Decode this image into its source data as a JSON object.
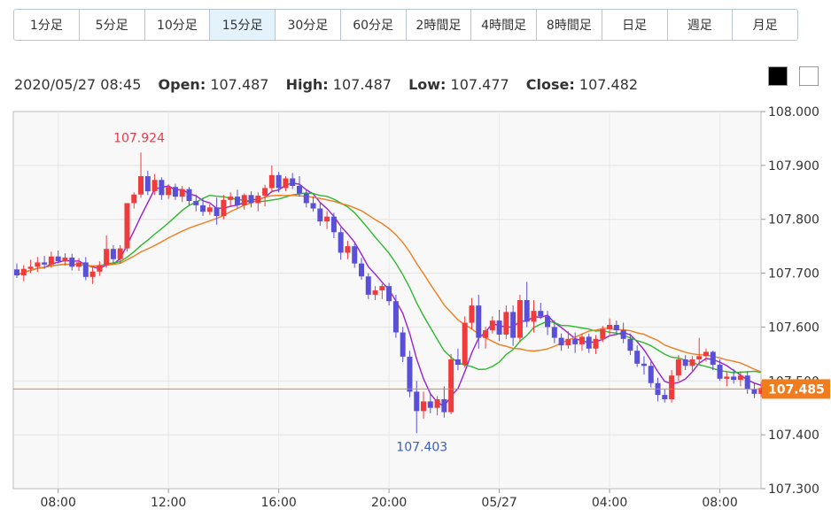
{
  "tabs": [
    {
      "label": "1分足",
      "active": false
    },
    {
      "label": "5分足",
      "active": false
    },
    {
      "label": "10分足",
      "active": false
    },
    {
      "label": "15分足",
      "active": true
    },
    {
      "label": "30分足",
      "active": false
    },
    {
      "label": "60分足",
      "active": false
    },
    {
      "label": "2時間足",
      "active": false
    },
    {
      "label": "4時間足",
      "active": false
    },
    {
      "label": "8時間足",
      "active": false
    },
    {
      "label": "日足",
      "active": false
    },
    {
      "label": "週足",
      "active": false
    },
    {
      "label": "月足",
      "active": false
    }
  ],
  "info": {
    "datetime": "2020/05/27 08:45",
    "open_label": "Open:",
    "open": "107.487",
    "high_label": "High:",
    "high": "107.487",
    "low_label": "Low:",
    "low": "107.477",
    "close_label": "Close:",
    "close": "107.482"
  },
  "theme_buttons": [
    {
      "color": "#000000"
    },
    {
      "color": "#ffffff"
    }
  ],
  "chart_data": {
    "type": "candlestick",
    "ylim": [
      107.3,
      108.0
    ],
    "y_ticks": [
      "108.000",
      "107.900",
      "107.800",
      "107.700",
      "107.600",
      "107.500",
      "107.400",
      "107.300"
    ],
    "x_ticks": [
      "08:00",
      "12:00",
      "16:00",
      "20:00",
      "05/27",
      "04:00",
      "08:00"
    ],
    "current_price": "107.485",
    "annotations": {
      "high": "107.924",
      "low": "107.403"
    },
    "colors": {
      "up": "#ef3b3b",
      "down": "#5a50d8",
      "ma_short": "#9b1fd0",
      "ma_mid": "#2eb82e",
      "ma_long": "#f07c1e",
      "current": "#f07c1e"
    },
    "ohlc": [
      [
        107.707,
        107.718,
        107.691,
        107.696
      ],
      [
        107.696,
        107.715,
        107.685,
        107.708
      ],
      [
        107.708,
        107.725,
        107.7,
        107.712
      ],
      [
        107.712,
        107.73,
        107.702,
        107.72
      ],
      [
        107.72,
        107.732,
        107.708,
        107.716
      ],
      [
        107.716,
        107.74,
        107.71,
        107.731
      ],
      [
        107.731,
        107.742,
        107.718,
        107.722
      ],
      [
        107.722,
        107.737,
        107.714,
        107.729
      ],
      [
        107.729,
        107.736,
        107.705,
        107.712
      ],
      [
        107.712,
        107.728,
        107.704,
        107.72
      ],
      [
        107.72,
        107.73,
        107.687,
        107.693
      ],
      [
        107.693,
        107.71,
        107.68,
        107.703
      ],
      [
        107.703,
        107.722,
        107.695,
        107.715
      ],
      [
        107.715,
        107.77,
        107.71,
        107.745
      ],
      [
        107.745,
        107.752,
        107.718,
        107.726
      ],
      [
        107.726,
        107.752,
        107.718,
        107.746
      ],
      [
        107.746,
        107.83,
        107.74,
        107.83
      ],
      [
        107.83,
        107.85,
        107.82,
        107.846
      ],
      [
        107.846,
        107.924,
        107.84,
        107.88
      ],
      [
        107.88,
        107.89,
        107.845,
        107.852
      ],
      [
        107.852,
        107.884,
        107.845,
        107.873
      ],
      [
        107.873,
        107.878,
        107.836,
        107.845
      ],
      [
        107.845,
        107.865,
        107.838,
        107.86
      ],
      [
        107.86,
        107.866,
        107.836,
        107.842
      ],
      [
        107.842,
        107.862,
        107.832,
        107.856
      ],
      [
        107.856,
        107.86,
        107.826,
        107.834
      ],
      [
        107.834,
        107.846,
        107.815,
        107.826
      ],
      [
        107.826,
        107.84,
        107.806,
        107.814
      ],
      [
        107.814,
        107.828,
        107.808,
        107.822
      ],
      [
        107.822,
        107.84,
        107.79,
        107.806
      ],
      [
        107.806,
        107.845,
        107.8,
        107.836
      ],
      [
        107.836,
        107.85,
        107.825,
        107.842
      ],
      [
        107.842,
        107.855,
        107.82,
        107.826
      ],
      [
        107.826,
        107.848,
        107.818,
        107.845
      ],
      [
        107.845,
        107.852,
        107.822,
        107.83
      ],
      [
        107.83,
        107.85,
        107.815,
        107.844
      ],
      [
        107.844,
        107.864,
        107.824,
        107.858
      ],
      [
        107.858,
        107.9,
        107.85,
        107.882
      ],
      [
        107.882,
        107.888,
        107.85,
        107.858
      ],
      [
        107.858,
        107.88,
        107.852,
        107.876
      ],
      [
        107.876,
        107.886,
        107.856,
        107.862
      ],
      [
        107.862,
        107.88,
        107.842,
        107.848
      ],
      [
        107.848,
        107.856,
        107.822,
        107.83
      ],
      [
        107.83,
        107.842,
        107.814,
        107.82
      ],
      [
        107.82,
        107.83,
        107.788,
        107.796
      ],
      [
        107.796,
        107.815,
        107.782,
        107.805
      ],
      [
        107.805,
        107.812,
        107.765,
        107.776
      ],
      [
        107.776,
        107.785,
        107.725,
        107.738
      ],
      [
        107.738,
        107.76,
        107.726,
        107.75
      ],
      [
        107.75,
        107.755,
        107.71,
        107.718
      ],
      [
        107.718,
        107.728,
        107.688,
        107.694
      ],
      [
        107.694,
        107.7,
        107.652,
        107.66
      ],
      [
        107.66,
        107.676,
        107.65,
        107.668
      ],
      [
        107.668,
        107.68,
        107.652,
        107.676
      ],
      [
        107.676,
        107.682,
        107.64,
        107.648
      ],
      [
        107.648,
        107.66,
        107.58,
        107.59
      ],
      [
        107.59,
        107.6,
        107.535,
        107.545
      ],
      [
        107.545,
        107.556,
        107.47,
        107.48
      ],
      [
        107.48,
        107.5,
        107.403,
        107.444
      ],
      [
        107.444,
        107.48,
        107.43,
        107.462
      ],
      [
        107.462,
        107.476,
        107.44,
        107.45
      ],
      [
        107.45,
        107.472,
        107.436,
        107.466
      ],
      [
        107.466,
        107.49,
        107.432,
        107.442
      ],
      [
        107.442,
        107.55,
        107.438,
        107.54
      ],
      [
        107.54,
        107.56,
        107.52,
        107.53
      ],
      [
        107.53,
        107.62,
        107.525,
        107.608
      ],
      [
        107.608,
        107.654,
        107.596,
        107.64
      ],
      [
        107.64,
        107.66,
        107.56,
        107.58
      ],
      [
        107.58,
        107.6,
        107.56,
        107.594
      ],
      [
        107.594,
        107.62,
        107.588,
        107.612
      ],
      [
        107.612,
        107.632,
        107.574,
        107.586
      ],
      [
        107.586,
        107.64,
        107.578,
        107.628
      ],
      [
        107.628,
        107.64,
        107.565,
        107.58
      ],
      [
        107.58,
        107.66,
        107.572,
        107.65
      ],
      [
        107.65,
        107.684,
        107.6,
        107.61
      ],
      [
        107.61,
        107.65,
        107.59,
        107.63
      ],
      [
        107.63,
        107.645,
        107.615,
        107.62
      ],
      [
        107.62,
        107.63,
        107.585,
        107.6
      ],
      [
        107.6,
        107.612,
        107.57,
        107.58
      ],
      [
        107.58,
        107.588,
        107.556,
        107.566
      ],
      [
        107.566,
        107.592,
        107.56,
        107.578
      ],
      [
        107.578,
        107.59,
        107.552,
        107.568
      ],
      [
        107.568,
        107.588,
        107.556,
        107.582
      ],
      [
        107.582,
        107.588,
        107.552,
        107.56
      ],
      [
        107.56,
        107.585,
        107.55,
        107.578
      ],
      [
        107.578,
        107.602,
        107.572,
        107.596
      ],
      [
        107.596,
        107.616,
        107.586,
        107.604
      ],
      [
        107.604,
        107.612,
        107.585,
        107.594
      ],
      [
        107.594,
        107.608,
        107.57,
        107.578
      ],
      [
        107.578,
        107.588,
        107.548,
        107.556
      ],
      [
        107.556,
        107.566,
        107.526,
        107.532
      ],
      [
        107.532,
        107.546,
        107.512,
        107.528
      ],
      [
        107.528,
        107.536,
        107.488,
        107.496
      ],
      [
        107.496,
        107.506,
        107.462,
        107.474
      ],
      [
        107.474,
        107.484,
        107.46,
        107.466
      ],
      [
        107.466,
        107.52,
        107.46,
        107.51
      ],
      [
        107.51,
        107.548,
        107.5,
        107.54
      ],
      [
        107.54,
        107.548,
        107.52,
        107.528
      ],
      [
        107.528,
        107.546,
        107.516,
        107.54
      ],
      [
        107.54,
        107.58,
        107.53,
        107.546
      ],
      [
        107.546,
        107.56,
        107.536,
        107.554
      ],
      [
        107.554,
        107.556,
        107.52,
        107.53
      ],
      [
        107.53,
        107.54,
        107.5,
        107.504
      ],
      [
        107.504,
        107.516,
        107.49,
        107.508
      ],
      [
        107.508,
        107.522,
        107.495,
        107.502
      ],
      [
        107.502,
        107.518,
        107.49,
        107.51
      ],
      [
        107.51,
        107.518,
        107.476,
        107.484
      ],
      [
        107.484,
        107.495,
        107.468,
        107.476
      ],
      [
        107.476,
        107.498,
        107.47,
        107.487
      ]
    ]
  }
}
